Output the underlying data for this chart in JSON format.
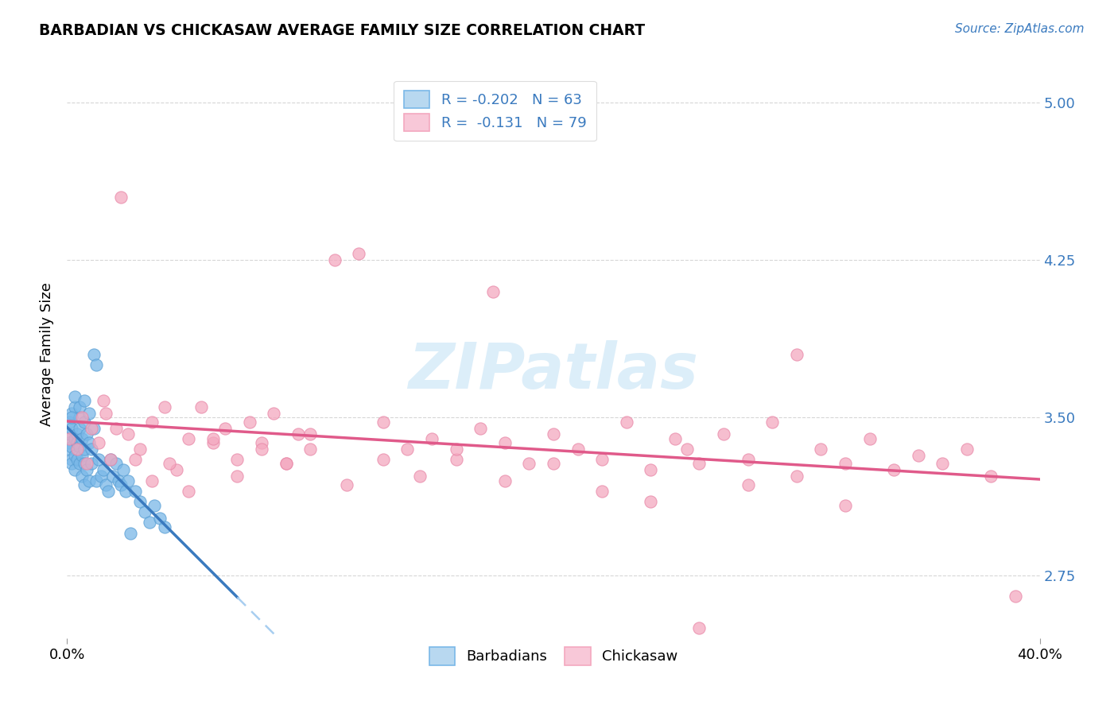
{
  "title": "BARBADIAN VS CHICKASAW AVERAGE FAMILY SIZE CORRELATION CHART",
  "source_text": "Source: ZipAtlas.com",
  "ylabel": "Average Family Size",
  "xlim": [
    0.0,
    0.4
  ],
  "ylim": [
    2.45,
    5.15
  ],
  "yticks": [
    2.75,
    3.5,
    4.25,
    5.0
  ],
  "barbadian_color": "#7ab8e8",
  "barbadian_edge": "#5a9fd4",
  "chickasaw_color": "#f4a8bf",
  "chickasaw_edge": "#e888a8",
  "trend_barb_color": "#3a7abf",
  "trend_chick_color": "#e05a8a",
  "trend_barb_dashed_color": "#a8cef0",
  "watermark_color": "#d4eaf8",
  "barb_x": [
    0.001,
    0.001,
    0.001,
    0.001,
    0.002,
    0.002,
    0.002,
    0.002,
    0.002,
    0.003,
    0.003,
    0.003,
    0.003,
    0.004,
    0.004,
    0.004,
    0.005,
    0.005,
    0.005,
    0.005,
    0.006,
    0.006,
    0.006,
    0.007,
    0.007,
    0.007,
    0.007,
    0.008,
    0.008,
    0.009,
    0.009,
    0.01,
    0.01,
    0.011,
    0.012,
    0.012,
    0.013,
    0.014,
    0.015,
    0.016,
    0.017,
    0.018,
    0.019,
    0.02,
    0.021,
    0.022,
    0.023,
    0.024,
    0.025,
    0.026,
    0.028,
    0.03,
    0.032,
    0.034,
    0.036,
    0.038,
    0.04,
    0.002,
    0.003,
    0.005,
    0.007,
    0.009,
    0.011
  ],
  "barb_y": [
    3.38,
    3.42,
    3.35,
    3.48,
    3.3,
    3.45,
    3.52,
    3.36,
    3.28,
    3.4,
    3.55,
    3.32,
    3.25,
    3.42,
    3.38,
    3.3,
    3.45,
    3.36,
    3.28,
    3.5,
    3.4,
    3.32,
    3.22,
    3.48,
    3.35,
    3.28,
    3.18,
    3.42,
    3.25,
    3.38,
    3.2,
    3.35,
    3.28,
    3.8,
    3.75,
    3.2,
    3.3,
    3.22,
    3.25,
    3.18,
    3.15,
    3.3,
    3.22,
    3.28,
    3.2,
    3.18,
    3.25,
    3.15,
    3.2,
    2.95,
    3.15,
    3.1,
    3.05,
    3.0,
    3.08,
    3.02,
    2.98,
    3.5,
    3.6,
    3.55,
    3.58,
    3.52,
    3.45
  ],
  "chick_x": [
    0.001,
    0.004,
    0.006,
    0.008,
    0.01,
    0.013,
    0.016,
    0.018,
    0.022,
    0.025,
    0.03,
    0.035,
    0.04,
    0.045,
    0.05,
    0.055,
    0.06,
    0.065,
    0.07,
    0.075,
    0.08,
    0.085,
    0.09,
    0.095,
    0.1,
    0.11,
    0.12,
    0.13,
    0.14,
    0.15,
    0.16,
    0.17,
    0.175,
    0.18,
    0.19,
    0.2,
    0.21,
    0.22,
    0.23,
    0.24,
    0.25,
    0.255,
    0.26,
    0.27,
    0.28,
    0.29,
    0.3,
    0.31,
    0.32,
    0.33,
    0.34,
    0.35,
    0.36,
    0.37,
    0.38,
    0.39,
    0.015,
    0.02,
    0.028,
    0.035,
    0.042,
    0.05,
    0.06,
    0.07,
    0.08,
    0.09,
    0.1,
    0.115,
    0.13,
    0.145,
    0.16,
    0.18,
    0.2,
    0.22,
    0.24,
    0.26,
    0.28,
    0.3,
    0.32
  ],
  "chick_y": [
    3.4,
    3.35,
    3.5,
    3.28,
    3.45,
    3.38,
    3.52,
    3.3,
    4.55,
    3.42,
    3.35,
    3.48,
    3.55,
    3.25,
    3.4,
    3.55,
    3.38,
    3.45,
    3.3,
    3.48,
    3.38,
    3.52,
    3.28,
    3.42,
    3.35,
    4.25,
    4.28,
    3.48,
    3.35,
    3.4,
    3.3,
    3.45,
    4.1,
    3.38,
    3.28,
    3.42,
    3.35,
    3.3,
    3.48,
    3.25,
    3.4,
    3.35,
    3.28,
    3.42,
    3.3,
    3.48,
    3.8,
    3.35,
    3.28,
    3.4,
    3.25,
    3.32,
    3.28,
    3.35,
    3.22,
    2.65,
    3.58,
    3.45,
    3.3,
    3.2,
    3.28,
    3.15,
    3.4,
    3.22,
    3.35,
    3.28,
    3.42,
    3.18,
    3.3,
    3.22,
    3.35,
    3.2,
    3.28,
    3.15,
    3.1,
    2.5,
    3.18,
    3.22,
    3.08
  ]
}
